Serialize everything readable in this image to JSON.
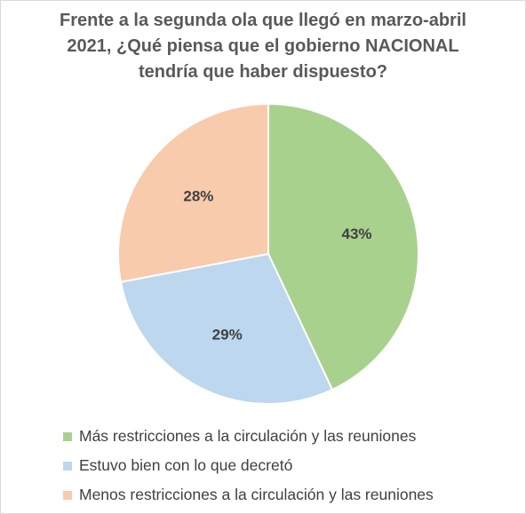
{
  "chart_data": {
    "type": "pie",
    "title_lines": [
      "Frente a la segunda ola que llegó en marzo-abril",
      "2021, ¿Qué piensa que el gobierno NACIONAL",
      "tendría que haber dispuesto?"
    ],
    "slices": [
      {
        "name": "Más restricciones a la circulación y las reuniones",
        "value": 43,
        "label": "43%",
        "color": "#a9d18e"
      },
      {
        "name": "Estuvo bien con lo que decretó",
        "value": 29,
        "label": "29%",
        "color": "#bdd7ee"
      },
      {
        "name": "Menos restricciones a la circulación y las reuniones",
        "value": 28,
        "label": "28%",
        "color": "#f8cbad"
      }
    ],
    "start_angle": "12 o'clock",
    "direction": "clockwise",
    "legend_position": "bottom-left"
  }
}
